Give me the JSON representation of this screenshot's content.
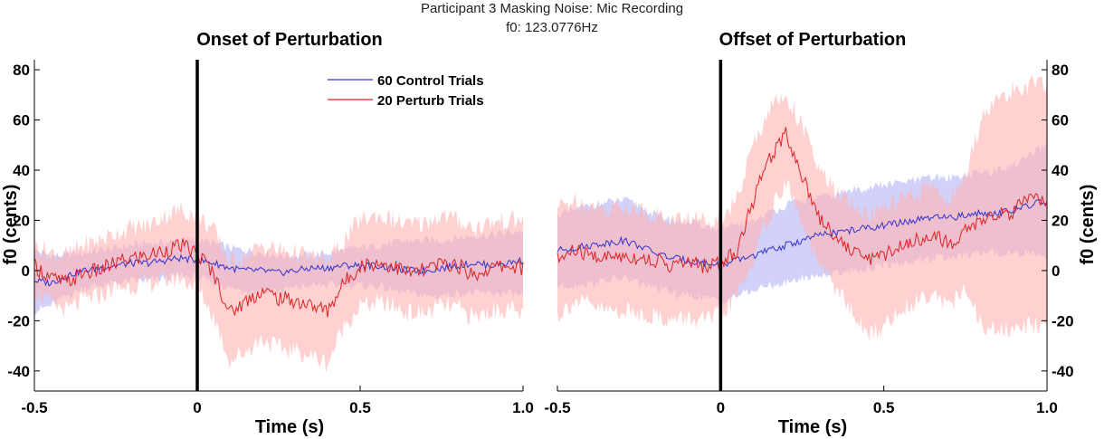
{
  "figure": {
    "suptitle_line1": "Participant 3 Masking Noise: Mic Recording",
    "suptitle_line2": "f0: 123.0776Hz"
  },
  "colors": {
    "control_line": "#3333cc",
    "control_band": "#b3b3f5",
    "perturb_line": "#dd2222",
    "perturb_band": "#ffb3b3"
  },
  "legend": {
    "control": "60 Control Trials",
    "perturb": "20 Perturb Trials",
    "placement": "top-right of left panel"
  },
  "chart_data": [
    {
      "type": "area",
      "title": "Onset of Perturbation",
      "xlabel": "Time (s)",
      "ylabel": "f0 (cents)",
      "xlim": [
        -0.5,
        1.0
      ],
      "ylim": [
        -48,
        84
      ],
      "xticks": [
        -0.5,
        0,
        0.5,
        1.0
      ],
      "xtick_labels": [
        "-0.5",
        "0",
        "0.5",
        "1.0"
      ],
      "yticks": [
        -40,
        -20,
        0,
        20,
        40,
        60,
        80
      ],
      "ytick_labels": [
        "-40",
        "-20",
        "0",
        "20",
        "40",
        "60",
        "80"
      ],
      "y_axis_side": "left",
      "event_line_x": 0,
      "x": [
        -0.5,
        -0.45,
        -0.4,
        -0.35,
        -0.3,
        -0.25,
        -0.2,
        -0.15,
        -0.1,
        -0.05,
        0.0,
        0.05,
        0.1,
        0.15,
        0.2,
        0.25,
        0.3,
        0.35,
        0.4,
        0.45,
        0.5,
        0.55,
        0.6,
        0.65,
        0.7,
        0.75,
        0.8,
        0.85,
        0.9,
        0.95,
        1.0
      ],
      "series": [
        {
          "name": "60 Control Trials",
          "mean": [
            -4,
            -5,
            -2,
            0,
            1,
            2,
            3,
            3,
            4,
            5,
            4,
            3,
            1,
            0,
            0,
            -1,
            0,
            1,
            1,
            2,
            2,
            2,
            1,
            0,
            0,
            1,
            2,
            3,
            2,
            3,
            4
          ],
          "upper": [
            8,
            6,
            6,
            7,
            8,
            9,
            10,
            11,
            11,
            12,
            12,
            11,
            9,
            8,
            7,
            6,
            6,
            6,
            7,
            8,
            9,
            10,
            11,
            12,
            12,
            12,
            13,
            14,
            14,
            15,
            16
          ],
          "lower": [
            -16,
            -14,
            -10,
            -7,
            -6,
            -5,
            -4,
            -4,
            -3,
            -2,
            -3,
            -5,
            -7,
            -8,
            -8,
            -8,
            -7,
            -6,
            -6,
            -6,
            -6,
            -6,
            -8,
            -9,
            -10,
            -10,
            -9,
            -9,
            -9,
            -9,
            -10
          ]
        },
        {
          "name": "20 Perturb Trials",
          "mean": [
            2,
            -3,
            -5,
            -1,
            0,
            3,
            5,
            6,
            8,
            10,
            7,
            -1,
            -17,
            -12,
            -8,
            -11,
            -12,
            -14,
            -16,
            -5,
            2,
            3,
            2,
            -1,
            0,
            3,
            2,
            -2,
            1,
            2,
            1
          ],
          "upper": [
            10,
            7,
            6,
            10,
            12,
            15,
            17,
            18,
            22,
            24,
            22,
            16,
            3,
            6,
            10,
            8,
            7,
            5,
            3,
            12,
            20,
            22,
            20,
            18,
            19,
            22,
            20,
            17,
            19,
            20,
            20
          ],
          "lower": [
            -8,
            -13,
            -16,
            -12,
            -10,
            -7,
            -6,
            -5,
            -4,
            -3,
            -7,
            -18,
            -36,
            -32,
            -27,
            -31,
            -32,
            -34,
            -37,
            -22,
            -14,
            -13,
            -14,
            -17,
            -17,
            -14,
            -15,
            -19,
            -16,
            -15,
            -18
          ]
        }
      ]
    },
    {
      "type": "area",
      "title": "Offset of Perturbation",
      "xlabel": "Time (s)",
      "ylabel": "f0 (cents)",
      "xlim": [
        -0.5,
        1.0
      ],
      "ylim": [
        -48,
        84
      ],
      "xticks": [
        -0.5,
        0,
        0.5,
        1.0
      ],
      "xtick_labels": [
        "-0.5",
        "0",
        "0.5",
        "1.0"
      ],
      "yticks": [
        -40,
        -20,
        0,
        20,
        40,
        60,
        80
      ],
      "ytick_labels": [
        "-40",
        "-20",
        "0",
        "20",
        "40",
        "60",
        "80"
      ],
      "y_axis_side": "right",
      "event_line_x": 0,
      "x": [
        -0.5,
        -0.45,
        -0.4,
        -0.35,
        -0.3,
        -0.25,
        -0.2,
        -0.15,
        -0.1,
        -0.05,
        0.0,
        0.05,
        0.1,
        0.15,
        0.2,
        0.25,
        0.3,
        0.35,
        0.4,
        0.45,
        0.5,
        0.55,
        0.6,
        0.65,
        0.7,
        0.75,
        0.8,
        0.85,
        0.9,
        0.95,
        1.0
      ],
      "series": [
        {
          "name": "60 Control Trials",
          "mean": [
            8,
            9,
            10,
            11,
            12,
            10,
            7,
            5,
            4,
            3,
            2,
            4,
            6,
            8,
            10,
            12,
            14,
            15,
            16,
            17,
            18,
            19,
            20,
            21,
            21,
            22,
            23,
            23,
            24,
            26,
            28
          ],
          "upper": [
            22,
            24,
            26,
            27,
            28,
            26,
            22,
            20,
            19,
            18,
            16,
            18,
            20,
            23,
            26,
            28,
            29,
            30,
            32,
            33,
            34,
            35,
            36,
            37,
            37,
            38,
            39,
            40,
            42,
            46,
            50
          ],
          "lower": [
            -6,
            -6,
            -5,
            -4,
            -3,
            -5,
            -7,
            -9,
            -10,
            -11,
            -12,
            -10,
            -8,
            -6,
            -5,
            -3,
            -2,
            -1,
            0,
            1,
            2,
            3,
            4,
            5,
            5,
            6,
            7,
            7,
            7,
            7,
            6
          ]
        },
        {
          "name": "20 Perturb Trials",
          "mean": [
            4,
            8,
            6,
            5,
            6,
            5,
            4,
            2,
            3,
            2,
            3,
            8,
            28,
            45,
            55,
            38,
            22,
            14,
            8,
            5,
            6,
            10,
            12,
            15,
            10,
            16,
            20,
            22,
            24,
            28,
            28
          ],
          "upper": [
            25,
            28,
            26,
            24,
            26,
            24,
            22,
            20,
            21,
            20,
            22,
            28,
            50,
            65,
            70,
            58,
            40,
            32,
            26,
            22,
            24,
            28,
            30,
            34,
            28,
            36,
            62,
            68,
            72,
            74,
            74
          ],
          "lower": [
            -18,
            -12,
            -14,
            -16,
            -16,
            -17,
            -18,
            -20,
            -19,
            -20,
            -18,
            -10,
            4,
            22,
            36,
            18,
            2,
            -6,
            -16,
            -26,
            -22,
            -16,
            -12,
            -8,
            -14,
            -8,
            -22,
            -24,
            -24,
            -22,
            -20
          ]
        }
      ]
    }
  ]
}
